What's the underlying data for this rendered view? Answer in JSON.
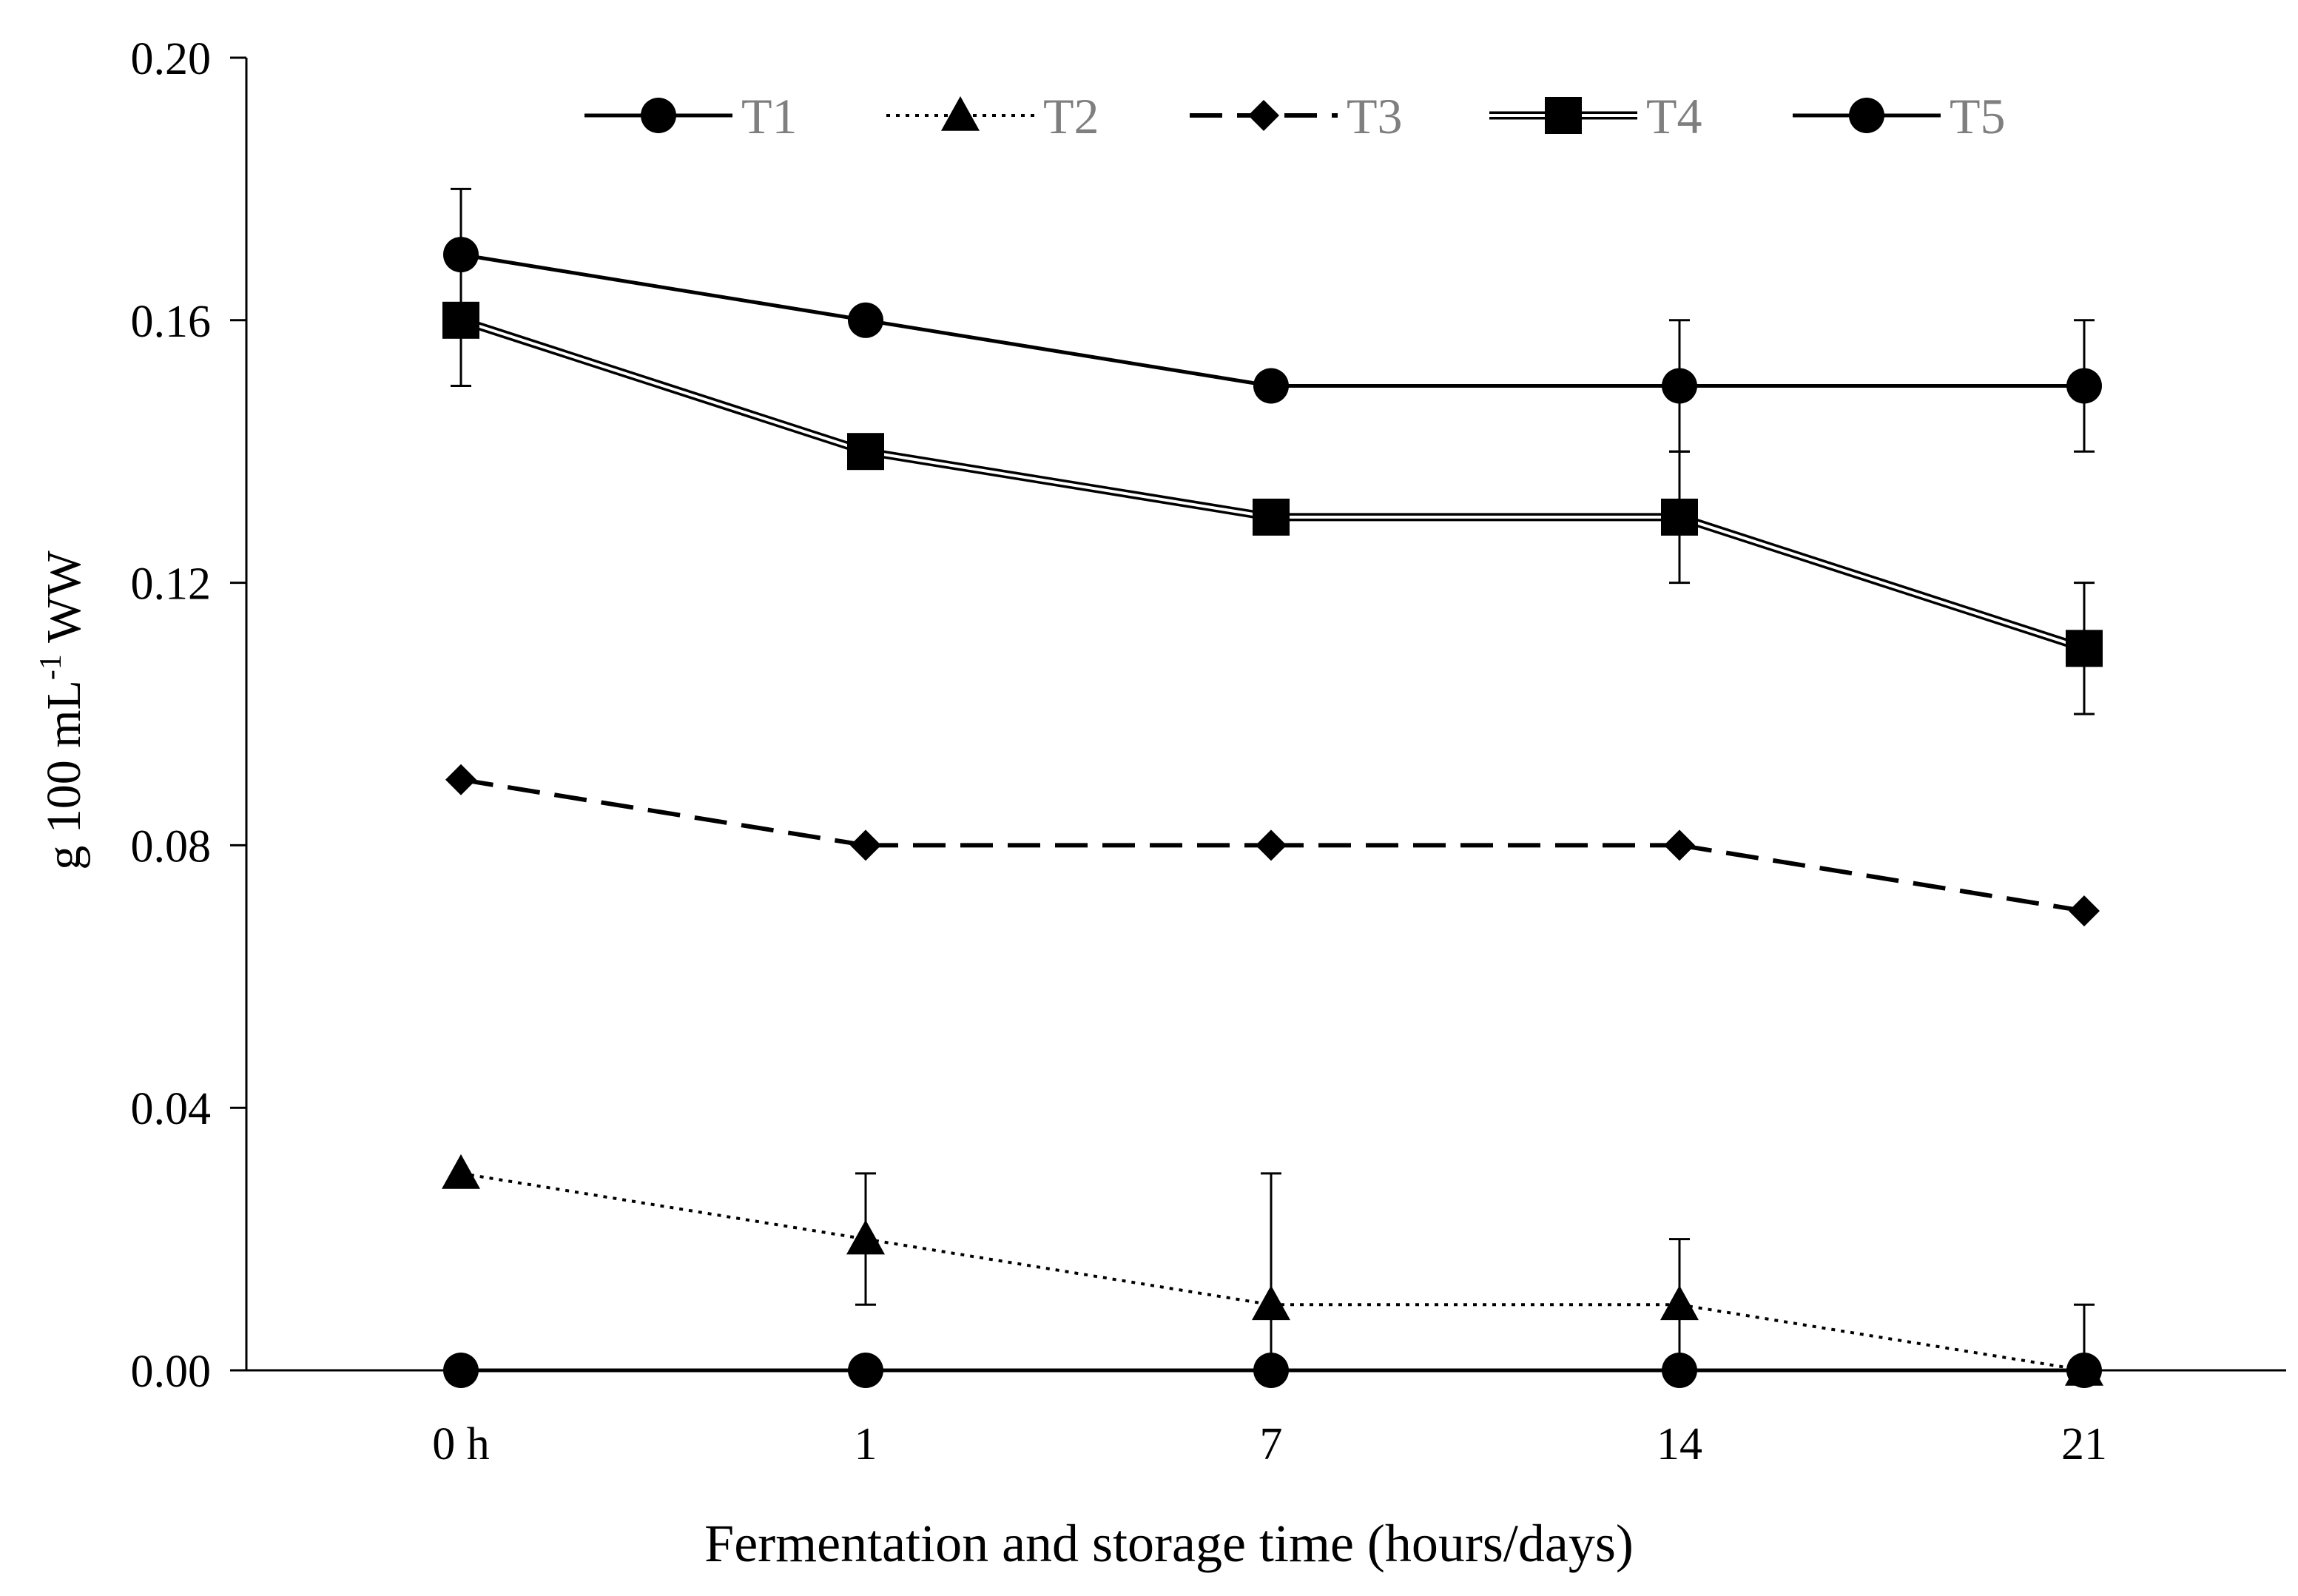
{
  "chart_data": {
    "type": "line",
    "title": "",
    "xlabel": "Fermentation and storage time (hours/days)",
    "ylabel": "g 100 mL",
    "ylabel_sup": "-1",
    "ylabel_suffix": " WW",
    "categories": [
      "0 h",
      "1",
      "7",
      "14",
      "21"
    ],
    "ylim": [
      0,
      0.2
    ],
    "yticks": [
      "0.00",
      "0.04",
      "0.08",
      "0.12",
      "0.16",
      "0.20"
    ],
    "ytick_values": [
      0,
      0.04,
      0.08,
      0.12,
      0.16,
      0.2
    ],
    "legend_position": "top",
    "series": [
      {
        "name": "T1",
        "marker": "circle",
        "line": "solid",
        "values": [
          0.0,
          0.0,
          0.0,
          0.0,
          0.0
        ],
        "errors": [
          null,
          null,
          null,
          null,
          null
        ]
      },
      {
        "name": "T2",
        "marker": "triangle",
        "line": "dotted",
        "values": [
          0.03,
          0.02,
          0.01,
          0.01,
          0.0
        ],
        "errors": [
          null,
          0.01,
          0.02,
          0.01,
          0.01
        ]
      },
      {
        "name": "T3",
        "marker": "diamond",
        "line": "dashed",
        "values": [
          0.09,
          0.08,
          0.08,
          0.08,
          0.07
        ],
        "errors": [
          null,
          null,
          null,
          null,
          null
        ]
      },
      {
        "name": "T4",
        "marker": "square",
        "line": "double",
        "values": [
          0.16,
          0.14,
          0.13,
          0.13,
          0.11
        ],
        "errors": [
          0.01,
          null,
          null,
          0.01,
          0.01
        ]
      },
      {
        "name": "T5",
        "marker": "circle",
        "line": "solid",
        "values": [
          0.17,
          0.16,
          0.15,
          0.15,
          0.15
        ],
        "errors": [
          0.01,
          null,
          null,
          0.01,
          0.01
        ]
      }
    ],
    "colors": {
      "line": "#000000",
      "legend_text": "#7f7f7f",
      "axis_text": "#000000"
    }
  }
}
